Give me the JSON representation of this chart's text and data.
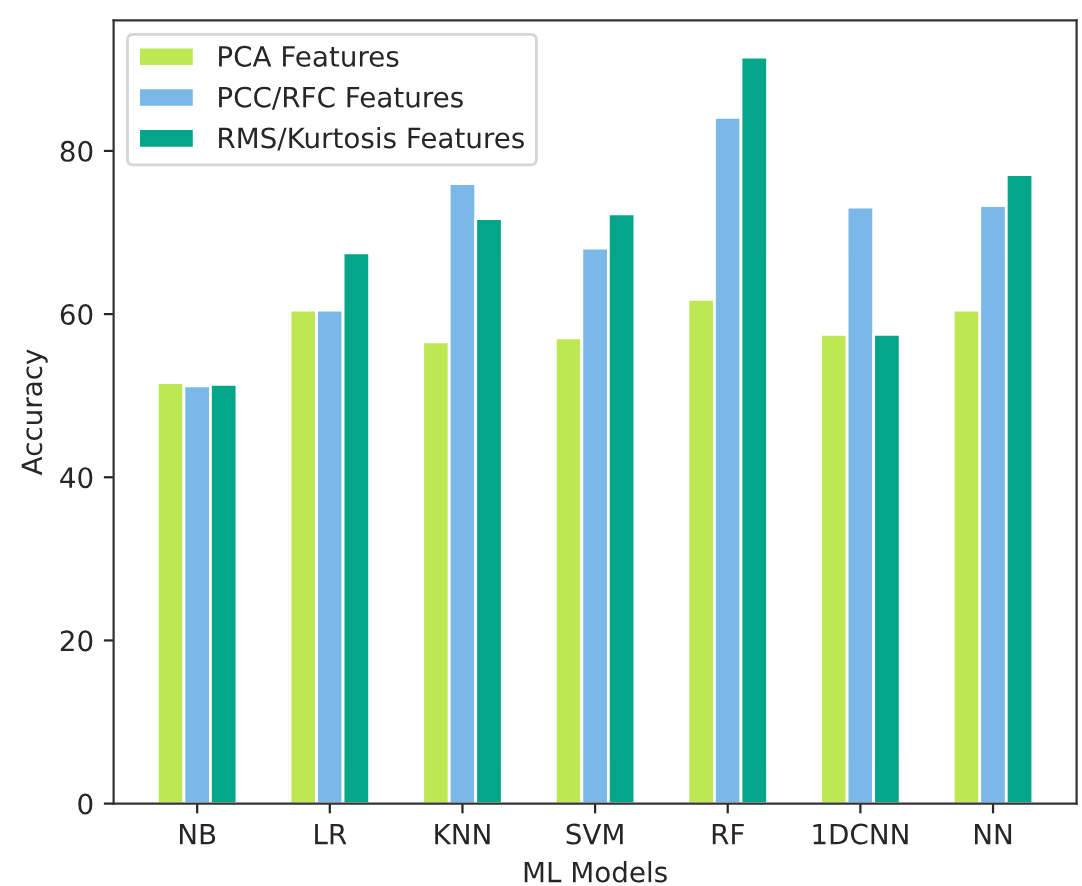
{
  "chart_data": {
    "type": "bar",
    "xlabel": "ML Models",
    "ylabel": "Accuracy",
    "categories": [
      "NB",
      "LR",
      "KNN",
      "SVM",
      "RF",
      "1DCNN",
      "NN"
    ],
    "series": [
      {
        "name": "PCA Features",
        "color": "#bde854",
        "values": [
          51.6,
          60.5,
          56.6,
          57.1,
          61.8,
          57.5,
          60.5
        ]
      },
      {
        "name": "PCC/RFC Features",
        "color": "#7ab8e8",
        "values": [
          51.2,
          60.5,
          76.0,
          68.1,
          84.1,
          73.1,
          73.3
        ]
      },
      {
        "name": "RMS/Kurtosis Features",
        "color": "#04a68a",
        "values": [
          51.4,
          67.5,
          71.7,
          72.3,
          91.5,
          57.5,
          77.1
        ]
      }
    ],
    "ylim": [
      0,
      96
    ],
    "yticks": [
      0,
      20,
      40,
      60,
      80
    ],
    "grid": false,
    "legend": "top left"
  }
}
